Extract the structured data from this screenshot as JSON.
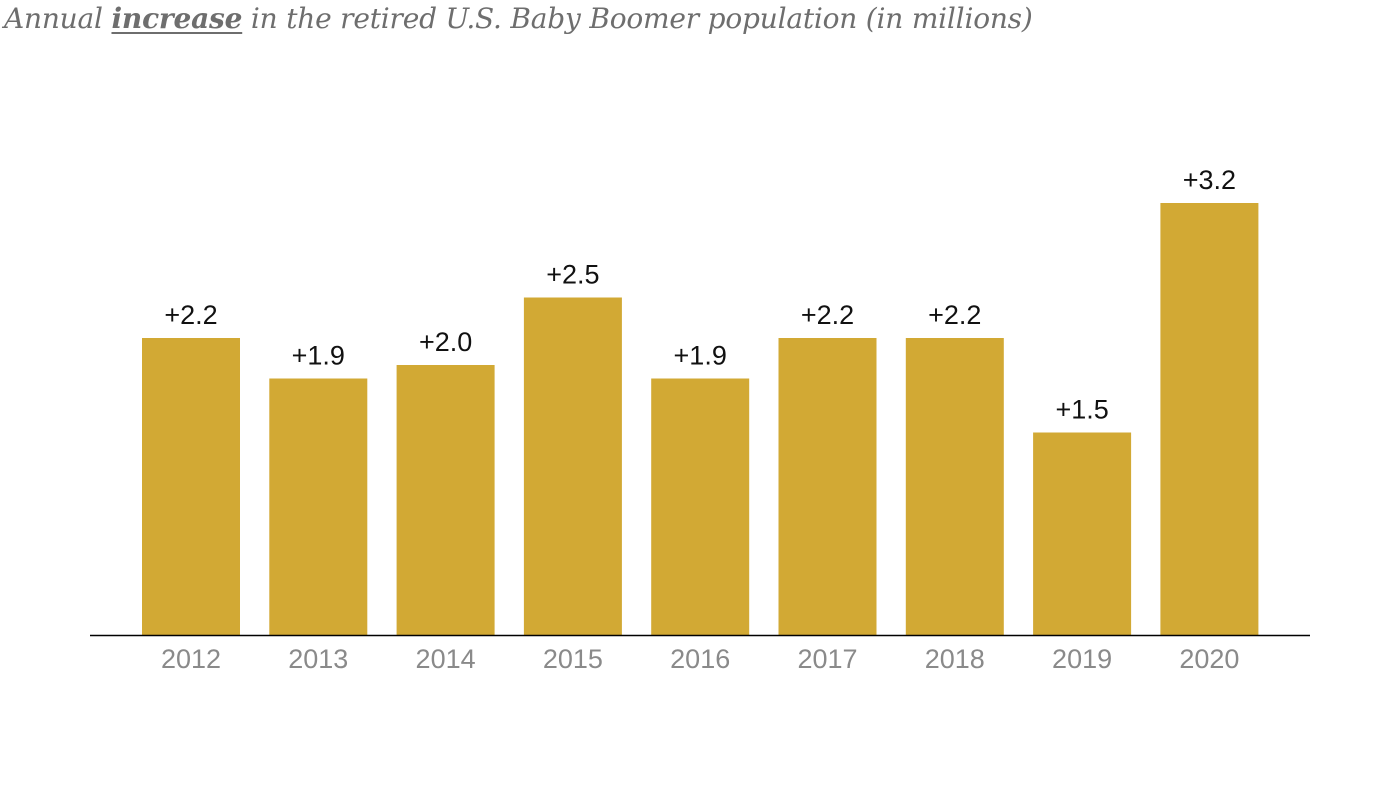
{
  "title": {
    "before": "Annual ",
    "emphasis": "increase",
    "after": " in the retired U.S. Baby Boomer population (in millions)"
  },
  "chart_data": {
    "type": "bar",
    "categories": [
      "2012",
      "2013",
      "2014",
      "2015",
      "2016",
      "2017",
      "2018",
      "2019",
      "2020"
    ],
    "values": [
      2.2,
      1.9,
      2.0,
      2.5,
      1.9,
      2.2,
      2.2,
      1.5,
      3.2
    ],
    "data_labels": [
      "+2.2",
      "+1.9",
      "+2.0",
      "+2.5",
      "+1.9",
      "+2.2",
      "+2.2",
      "+1.5",
      "+3.2"
    ],
    "xlabel": "",
    "ylabel": "",
    "ylim": [
      0,
      3.2
    ],
    "grid": false,
    "legend": "none",
    "colors": {
      "bar": "#D2A934",
      "axis": "#000000",
      "tick_text": "#8a8a8a",
      "label_text": "#111111",
      "title_text": "#6e6e6e"
    }
  }
}
